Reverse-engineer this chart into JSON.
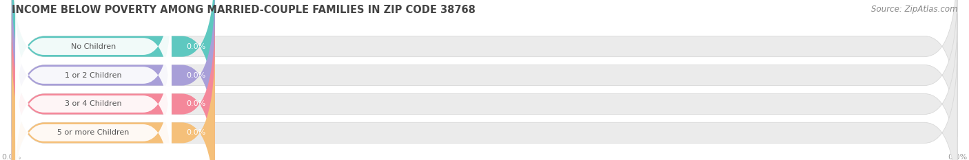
{
  "title": "INCOME BELOW POVERTY AMONG MARRIED-COUPLE FAMILIES IN ZIP CODE 38768",
  "source": "Source: ZipAtlas.com",
  "categories": [
    "No Children",
    "1 or 2 Children",
    "3 or 4 Children",
    "5 or more Children"
  ],
  "values": [
    0.0,
    0.0,
    0.0,
    0.0
  ],
  "bar_colors": [
    "#5ec8c0",
    "#a89fd8",
    "#f4889a",
    "#f5c07a"
  ],
  "bar_bg_color": "#ebebeb",
  "title_fontsize": 10.5,
  "source_fontsize": 8.5,
  "label_fontsize": 8,
  "value_fontsize": 8,
  "tick_fontsize": 8,
  "background_color": "#ffffff",
  "category_label_color": "#555555",
  "tick_label_color": "#999999",
  "title_color": "#444444",
  "source_color": "#888888",
  "grid_color": "#cccccc"
}
